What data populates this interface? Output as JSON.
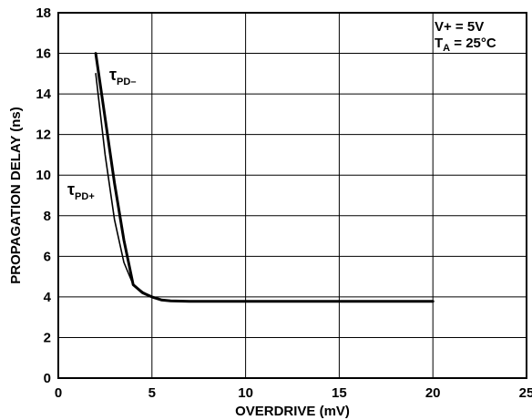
{
  "chart_data": {
    "type": "line",
    "title": "",
    "xlabel": "OVERDRIVE (mV)",
    "ylabel": "PROPAGATION DELAY (ns)",
    "xlim": [
      0,
      25
    ],
    "ylim": [
      0,
      18
    ],
    "x_ticks": [
      "0",
      "5",
      "10",
      "15",
      "20",
      "25"
    ],
    "y_ticks": [
      "0",
      "2",
      "4",
      "6",
      "8",
      "10",
      "12",
      "14",
      "16",
      "18"
    ],
    "grid": true,
    "conditions": [
      {
        "text": "V+ = 5V"
      },
      {
        "main": "T",
        "sub": "A",
        "rest": " = 25°C"
      }
    ],
    "series": [
      {
        "tau": "τ",
        "sub": "PD–",
        "x": [
          2.0,
          2.5,
          3.0,
          3.5,
          4.0,
          4.5,
          5.0,
          5.5,
          6.0,
          7.0,
          10.0,
          15.0,
          20.0
        ],
        "y": [
          16.0,
          12.8,
          9.6,
          6.8,
          4.6,
          4.2,
          4.0,
          3.85,
          3.8,
          3.78,
          3.78,
          3.78,
          3.78
        ]
      },
      {
        "tau": "τ",
        "sub": "PD+",
        "x": [
          2.0,
          2.5,
          3.0,
          3.5,
          4.0,
          4.5,
          5.0,
          5.5,
          6.0,
          7.0,
          10.0,
          15.0,
          20.0
        ],
        "y": [
          15.0,
          11.0,
          7.8,
          5.7,
          4.6,
          4.25,
          4.0,
          3.85,
          3.8,
          3.78,
          3.78,
          3.78,
          3.78
        ]
      }
    ]
  }
}
